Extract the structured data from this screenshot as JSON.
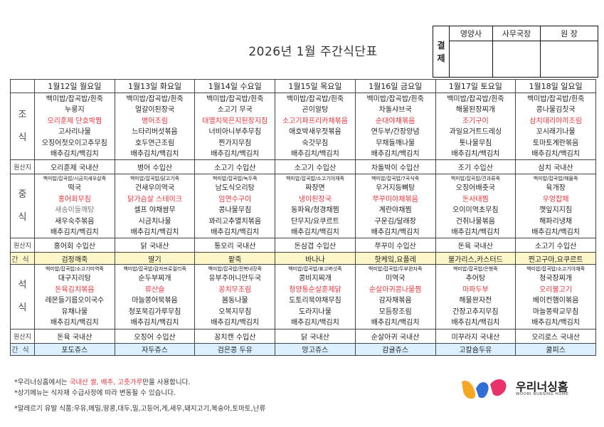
{
  "title": "2026년 1월 주간식단표",
  "approval": {
    "label": "결\n제",
    "roles": [
      "영양사",
      "사무국장",
      "원 장"
    ]
  },
  "days": [
    "1월12일 월요일",
    "1월13일 화요일",
    "1월14일 수요일",
    "1월15일 목요일",
    "1월16일 금요일",
    "1월17일 토요일",
    "1월18일 일요일"
  ],
  "labels": {
    "breakfast": [
      "조",
      "식"
    ],
    "lunch": [
      "중",
      "식"
    ],
    "dinner": [
      "석",
      "식"
    ],
    "origin": "원산지",
    "snack": "간식",
    "drink": "간식"
  },
  "breakfast": [
    [
      {
        "t": "백미밥/잡곡밥/흰죽"
      },
      {
        "t": "누룽지"
      },
      {
        "t": "오리훈제 단호박찜",
        "c": "red"
      },
      {
        "t": "고사리나물"
      },
      {
        "t": "오징어젓오이고추무침"
      },
      {
        "t": "배추김치/백김치"
      }
    ],
    [
      {
        "t": "백미밥/잡곡밥/흰죽"
      },
      {
        "t": "얼갈이된장국"
      },
      {
        "t": "병어조림",
        "c": "red"
      },
      {
        "t": "느타리버섯볶음"
      },
      {
        "t": "호두연근조림"
      },
      {
        "t": "배추김치/백김치"
      }
    ],
    [
      {
        "t": "백미밥/잡곡밥/흰죽"
      },
      {
        "t": "소고기 무국"
      },
      {
        "t": "대멸치묵은지된장지짐",
        "c": "red"
      },
      {
        "t": "너비아니부추무침"
      },
      {
        "t": "찐가지무침"
      },
      {
        "t": "배추김치/백김치"
      }
    ],
    [
      {
        "t": "백미밥/잡곡밥/흰죽"
      },
      {
        "t": "곤이알탕"
      },
      {
        "t": "소고기파프리카채볶음",
        "c": "red"
      },
      {
        "t": "애호박새우젓볶음"
      },
      {
        "t": "숙갓무침"
      },
      {
        "t": "배추김치/백김치"
      }
    ],
    [
      {
        "t": "백미밥/잡곡밥/흰죽"
      },
      {
        "t": "차돌샤브국"
      },
      {
        "t": "순대야채볶음",
        "c": "red"
      },
      {
        "t": "연두부/간장양념"
      },
      {
        "t": "무채들깨나물"
      },
      {
        "t": "배추김치/백김치"
      }
    ],
    [
      {
        "t": "백미밥/잡곡밥/흰죽"
      },
      {
        "t": "해물된장찌개"
      },
      {
        "t": "조기구이",
        "c": "red"
      },
      {
        "t": "과일요거트드레싱"
      },
      {
        "t": "톳나물무침"
      },
      {
        "t": "배추김치/백김치"
      }
    ],
    [
      {
        "t": "백미밥/잡곡밥/흰죽"
      },
      {
        "t": "콩나물김칫국"
      },
      {
        "t": "삼치데리야끼조림",
        "c": "red"
      },
      {
        "t": "꼬시래기나물"
      },
      {
        "t": "토마토계란볶음"
      },
      {
        "t": "배추김치/백김치"
      }
    ]
  ],
  "breakfast_origin": [
    "오리훈제 국내산",
    "병어 수입산",
    "소고기 수입산",
    "소고기 수입산",
    "차돌박이 수입산",
    "조기 수입산",
    "삼치 국내산"
  ],
  "lunch": [
    [
      {
        "t": "백미밥/잡곡밥/시금치새우살죽",
        "s": 1
      },
      {
        "t": "떡국"
      },
      {
        "t": "홍어회무침",
        "c": "red"
      },
      {
        "t": "새송이들깨탕",
        "c": "grey"
      },
      {
        "t": "새우숙주볶음"
      },
      {
        "t": "배추김치/백김치"
      }
    ],
    [
      {
        "t": "백미밥/잡곡밥/닭고기죽",
        "s": 1
      },
      {
        "t": "건새우미역국"
      },
      {
        "t": "닭가슴살 스테이크",
        "c": "red"
      },
      {
        "t": "셀프 야채쌈무"
      },
      {
        "t": "시금치나물"
      },
      {
        "t": "배추김치/백김치"
      }
    ],
    [
      {
        "t": "백미밥/잡곡밥/녹두죽",
        "s": 1
      },
      {
        "t": "남도식오리탕"
      },
      {
        "t": "임연수구이",
        "c": "red"
      },
      {
        "t": "콩나물무침"
      },
      {
        "t": "꽈리고추멸치볶음"
      },
      {
        "t": "배추김치/백김치"
      }
    ],
    [
      {
        "t": "백미밥/잡곡밥/소고기야채죽",
        "s": 1
      },
      {
        "t": "짜장면"
      },
      {
        "t": "냉이된장국",
        "c": "red"
      },
      {
        "t": "동파육/청경채찜"
      },
      {
        "t": "단무지/요쿠르트"
      },
      {
        "t": "배추김치/백김치"
      }
    ],
    [
      {
        "t": "백미밥/잡곡밥/7곡식죽",
        "s": 1
      },
      {
        "t": "우거지등뼈탕"
      },
      {
        "t": "쭈꾸미야채볶음",
        "c": "red"
      },
      {
        "t": "계란야채찜"
      },
      {
        "t": "구운김/달래장"
      },
      {
        "t": "배추김치/백김치"
      }
    ],
    [
      {
        "t": "백미밥/잡곡밥/견과류죽",
        "s": 1
      },
      {
        "t": "오징어배춧국"
      },
      {
        "t": "돈사태찜",
        "c": "red"
      },
      {
        "t": "오이미역초무침"
      },
      {
        "t": "건취나물볶음"
      },
      {
        "t": "배추김치/백김치"
      }
    ],
    [
      {
        "t": "백미밥/잡곡밥/해물죽",
        "s": 1
      },
      {
        "t": "육개장"
      },
      {
        "t": "우엉잡채",
        "c": "red"
      },
      {
        "t": "깻잎지지짐"
      },
      {
        "t": "해파리냉채"
      },
      {
        "t": "배추김치/백김치"
      }
    ]
  ],
  "lunch_origin": [
    "홍어회 수입산",
    "닭 국내산",
    "통오리 국내산",
    "돈삼겹 수입산",
    "쭈꾸미 수입산",
    "돈육 국내산",
    "소고기 수입산"
  ],
  "snack": [
    "검정깨죽",
    "딸기",
    "팥죽",
    "바나나",
    "핫케잌,요플레",
    "불가리스,카스터드",
    "찐고구마,요쿠르트"
  ],
  "dinner": [
    [
      {
        "t": "백미밥/잡곡밥/소고기미역죽",
        "s": 1
      },
      {
        "t": "대구지리탕"
      },
      {
        "t": "돈육김치볶음",
        "c": "red"
      },
      {
        "t": "레몬들기름오이국수"
      },
      {
        "t": "유채나물"
      },
      {
        "t": "배추김치/백김치"
      }
    ],
    [
      {
        "t": "백미밥/잡곡밥/감자브로컬리죽",
        "s": 1
      },
      {
        "t": "순두부찌개"
      },
      {
        "t": "류산슬",
        "c": "red"
      },
      {
        "t": "마늘쫑어묵볶음"
      },
      {
        "t": "청포묵김가루무침"
      },
      {
        "t": "배추김치/백김치"
      }
    ],
    [
      {
        "t": "백미밥/잡곡밥/전복내장죽",
        "s": 1
      },
      {
        "t": "유부주머니만두국"
      },
      {
        "t": "꽁치무조림",
        "c": "red"
      },
      {
        "t": "봄동나물"
      },
      {
        "t": "오복지무침"
      },
      {
        "t": "배추김치/백김치"
      }
    ],
    [
      {
        "t": "백미밥/잡곡밥/표고버섯죽",
        "s": 1
      },
      {
        "t": "콩비지찌개"
      },
      {
        "t": "청양통순살훈제닭",
        "c": "red"
      },
      {
        "t": "도토리묵야채무침"
      },
      {
        "t": "도라지나물"
      },
      {
        "t": "배추김치/백김치"
      }
    ],
    [
      {
        "t": "백미밥/잡곡밥/두부완자죽",
        "s": 1
      },
      {
        "t": "미역국"
      },
      {
        "t": "순살아귀콩나물찜",
        "c": "red"
      },
      {
        "t": "감자채볶음"
      },
      {
        "t": "모듬장조림"
      },
      {
        "t": "배추김치/백김치"
      }
    ],
    [
      {
        "t": "백미밥/잡곡밥/은행죽",
        "s": 1
      },
      {
        "t": "추어탕"
      },
      {
        "t": "마파두부",
        "c": "red"
      },
      {
        "t": "해물완자전"
      },
      {
        "t": "간장고추지무침"
      },
      {
        "t": "배추김치/백김치"
      }
    ],
    [
      {
        "t": "백미밥/잡곡밥/소고기야채죽",
        "s": 1
      },
      {
        "t": "청국장찌개"
      },
      {
        "t": "오리불고기",
        "c": "red"
      },
      {
        "t": "베이컨햄이볶음"
      },
      {
        "t": "마늘쫑락교무침"
      },
      {
        "t": "배추김치/백김치"
      }
    ]
  ],
  "dinner_origin": [
    "돈육 국내산",
    "오징어 수입산",
    "꽁치캔 수입산",
    "닭 국내산",
    "순살아귀 국내산",
    "미꾸라지 국내산",
    "오리로스 국내산"
  ],
  "drink": [
    "포도쥬스",
    "자두쥬스",
    "검은콩 두유",
    "망고쥬스",
    "감귤쥬스",
    "고칼슘두유",
    "쿨피스"
  ],
  "notes": {
    "line1_pre": "*우리너싱홈에서는 ",
    "line1_hl": "국내산 쌀, 배추, 고춧가루",
    "line1_post": "만을 사용합니다.",
    "line2": "*상기메뉴는 식자재 수급사정에 따라 변동될 수 있습니다.",
    "allergy": "*알레르기 유발 식품:우유,메밀,땅콩,대두,밀,고등어,게,새우,돼지고기,복숭아,토마토,난류"
  },
  "logo": {
    "name": "우리너싱홈",
    "sub": "WOORI NURSING HOME",
    "colors": [
      "#f5a623",
      "#2f6fd6",
      "#e8336a"
    ]
  }
}
